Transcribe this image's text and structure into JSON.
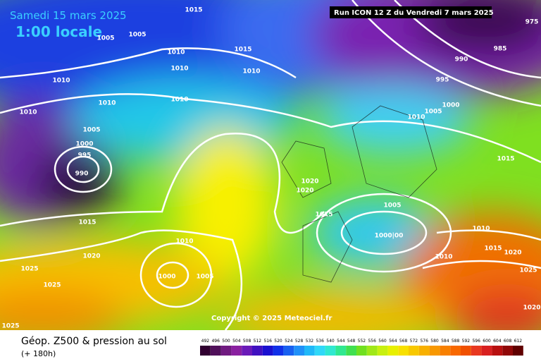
{
  "header": {
    "date": "Samedi 15 mars 2025",
    "time": "1:00 locale",
    "run": "Run ICON 12 Z du Vendredi 7 mars 2025"
  },
  "copyright": "Copyright © 2025 Meteociel.fr",
  "footer": {
    "title": "Géop. Z500 & pression au sol",
    "lead": "(+ 180h)"
  },
  "isobar_labels": [
    "1015",
    "1005",
    "1005",
    "1015",
    "1010",
    "1010",
    "1010",
    "1010",
    "1010",
    "1010",
    "1010",
    "1005",
    "1000",
    "995",
    "990",
    "1015",
    "1020",
    "1025",
    "1025",
    "1025",
    "1010",
    "1000",
    "1005",
    "1020",
    "1020",
    "1015",
    "1005",
    "1000|00",
    "990",
    "985",
    "995",
    "1000",
    "1005",
    "1010",
    "1015",
    "1010",
    "1015",
    "1020",
    "1025",
    "1010",
    "1020",
    "975"
  ],
  "scale": [
    492,
    496,
    500,
    504,
    508,
    512,
    516,
    520,
    524,
    528,
    532,
    536,
    540,
    544,
    548,
    552,
    556,
    560,
    564,
    568,
    572,
    576,
    580,
    584,
    588,
    592,
    596,
    600,
    604,
    608,
    612
  ]
}
